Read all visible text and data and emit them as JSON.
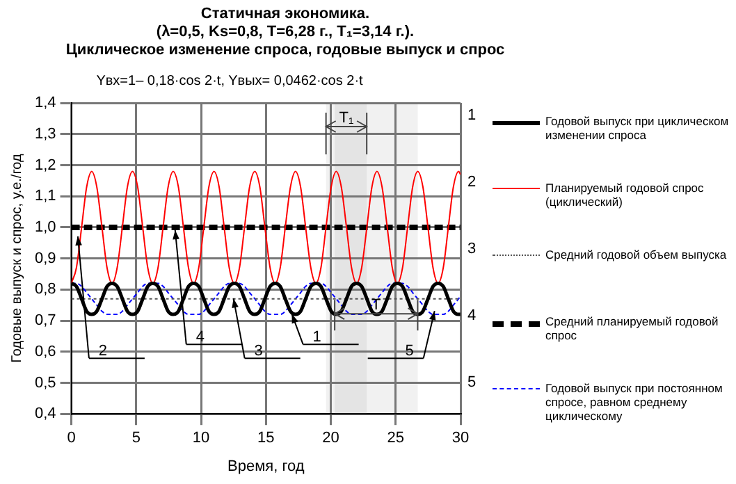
{
  "chart_data": {
    "type": "line",
    "title": "Статичная экономика.\n(λ=0,5,  Ks=0,8,  T=6,28 г., T₁=3,14 г.).\nЦиклическое изменение спроса, годовые выпуск и спрос",
    "subtitle": "Yвх=1– 0,18·cos 2·t,    Yвых= 0,0462·cos 2·t",
    "xlabel": "Время, год",
    "ylabel": "Годовые выпуск и спрос, у.е./год",
    "x": [
      0,
      0.39,
      0.79,
      1.18,
      1.57,
      1.96,
      2.36,
      2.75,
      3.14,
      3.53,
      3.93,
      4.32,
      4.71,
      5.11,
      5.5,
      5.89,
      6.28,
      6.68,
      7.07,
      7.46,
      7.85,
      8.25,
      8.64,
      9.03,
      9.42,
      9.82,
      10.21,
      10.6,
      11,
      11.39,
      11.78,
      12.17,
      12.57,
      12.96,
      13.35,
      13.74,
      14.14,
      14.53,
      14.92,
      15.32,
      15.71,
      16.1,
      16.49,
      16.89,
      17.28,
      17.67,
      18.06,
      18.46,
      18.85,
      19.24,
      19.63,
      20.03,
      20.42,
      20.81,
      21.21,
      21.6,
      21.99,
      22.38,
      22.78,
      23.17,
      23.56,
      23.95,
      24.35,
      24.74,
      25.13,
      25.53,
      25.92,
      26.31,
      26.7,
      27.1,
      27.49,
      27.88,
      28.27,
      28.67,
      29.06,
      29.45,
      29.85,
      30
    ],
    "series": [
      {
        "name": "Годовой выпуск при циклическом изменении спроса",
        "color": "#000000",
        "line_style": "solid",
        "values": [
          0.82,
          0.81,
          0.77,
          0.73,
          0.72,
          0.73,
          0.77,
          0.81,
          0.82,
          0.81,
          0.77,
          0.73,
          0.72,
          0.73,
          0.77,
          0.81,
          0.82,
          0.81,
          0.77,
          0.73,
          0.72,
          0.73,
          0.77,
          0.81,
          0.82,
          0.81,
          0.77,
          0.73,
          0.72,
          0.73,
          0.77,
          0.81,
          0.82,
          0.81,
          0.77,
          0.73,
          0.72,
          0.73,
          0.77,
          0.81,
          0.82,
          0.81,
          0.77,
          0.73,
          0.72,
          0.73,
          0.77,
          0.81,
          0.82,
          0.81,
          0.77,
          0.73,
          0.72,
          0.73,
          0.77,
          0.81,
          0.82,
          0.81,
          0.77,
          0.73,
          0.72,
          0.73,
          0.77,
          0.81,
          0.82,
          0.81,
          0.77,
          0.73,
          0.72,
          0.73,
          0.77,
          0.81,
          0.82,
          0.81,
          0.77,
          0.73,
          0.72,
          0.72
        ]
      },
      {
        "name": "Планируемый годовой спрос (циклический)",
        "color": "#ff0000",
        "line_style": "solid",
        "values": [
          0.82,
          0.87,
          1.0,
          1.13,
          1.18,
          1.13,
          1.0,
          0.87,
          0.82,
          0.87,
          1.0,
          1.13,
          1.18,
          1.13,
          1.0,
          0.87,
          0.82,
          0.87,
          1.0,
          1.13,
          1.18,
          1.13,
          1.0,
          0.87,
          0.82,
          0.87,
          1.0,
          1.13,
          1.18,
          1.13,
          1.0,
          0.87,
          0.82,
          0.87,
          1.0,
          1.13,
          1.18,
          1.13,
          1.0,
          0.87,
          0.82,
          0.87,
          1.0,
          1.13,
          1.18,
          1.13,
          1.0,
          0.87,
          0.82,
          0.87,
          1.0,
          1.13,
          1.18,
          1.13,
          1.0,
          0.87,
          0.82,
          0.87,
          1.0,
          1.13,
          1.18,
          1.13,
          1.0,
          0.87,
          0.82,
          0.87,
          1.0,
          1.13,
          1.18,
          1.13,
          1.0,
          0.87,
          0.82,
          0.87,
          1.0,
          1.13,
          1.18,
          1.17
        ]
      },
      {
        "name": "Средний годовой объем выпуска",
        "color": "#555555",
        "line_style": "dotted",
        "values": [
          0.77,
          0.77,
          0.77,
          0.77,
          0.77,
          0.77,
          0.77,
          0.77,
          0.77,
          0.77,
          0.77,
          0.77,
          0.77,
          0.77,
          0.77,
          0.77,
          0.77,
          0.77,
          0.77,
          0.77,
          0.77,
          0.77,
          0.77,
          0.77,
          0.77,
          0.77,
          0.77,
          0.77,
          0.77,
          0.77,
          0.77,
          0.77,
          0.77,
          0.77,
          0.77,
          0.77,
          0.77,
          0.77,
          0.77,
          0.77,
          0.77,
          0.77,
          0.77,
          0.77,
          0.77,
          0.77,
          0.77,
          0.77,
          0.77,
          0.77,
          0.77,
          0.77,
          0.77,
          0.77,
          0.77,
          0.77,
          0.77,
          0.77,
          0.77,
          0.77,
          0.77,
          0.77,
          0.77,
          0.77,
          0.77,
          0.77,
          0.77,
          0.77,
          0.77,
          0.77,
          0.77,
          0.77,
          0.77,
          0.77,
          0.77,
          0.77,
          0.77,
          0.77
        ]
      },
      {
        "name": "Средний планируемый годовой спрос",
        "color": "#000000",
        "line_style": "dashed",
        "values": [
          1.0,
          1.0,
          1.0,
          1.0,
          1.0,
          1.0,
          1.0,
          1.0,
          1.0,
          1.0,
          1.0,
          1.0,
          1.0,
          1.0,
          1.0,
          1.0,
          1.0,
          1.0,
          1.0,
          1.0,
          1.0,
          1.0,
          1.0,
          1.0,
          1.0,
          1.0,
          1.0,
          1.0,
          1.0,
          1.0,
          1.0,
          1.0,
          1.0,
          1.0,
          1.0,
          1.0,
          1.0,
          1.0,
          1.0,
          1.0,
          1.0,
          1.0,
          1.0,
          1.0,
          1.0,
          1.0,
          1.0,
          1.0,
          1.0,
          1.0,
          1.0,
          1.0,
          1.0,
          1.0,
          1.0,
          1.0,
          1.0,
          1.0,
          1.0,
          1.0,
          1.0,
          1.0,
          1.0,
          1.0,
          1.0,
          1.0,
          1.0,
          1.0,
          1.0,
          1.0,
          1.0,
          1.0,
          1.0,
          1.0,
          1.0,
          1.0,
          1.0,
          1.0
        ]
      },
      {
        "name": "Годовой выпуск при постоянном спросе, равном среднему циклическому",
        "color": "#0000ff",
        "line_style": "dashed",
        "values": [
          0.82,
          0.82,
          0.81,
          0.79,
          0.77,
          0.75,
          0.73,
          0.72,
          0.72,
          0.72,
          0.73,
          0.75,
          0.77,
          0.79,
          0.81,
          0.82,
          0.82,
          0.82,
          0.81,
          0.79,
          0.77,
          0.75,
          0.73,
          0.72,
          0.72,
          0.72,
          0.73,
          0.75,
          0.77,
          0.79,
          0.81,
          0.82,
          0.82,
          0.82,
          0.81,
          0.79,
          0.77,
          0.75,
          0.73,
          0.72,
          0.72,
          0.72,
          0.73,
          0.75,
          0.77,
          0.79,
          0.81,
          0.82,
          0.82,
          0.82,
          0.81,
          0.79,
          0.77,
          0.75,
          0.73,
          0.72,
          0.72,
          0.72,
          0.73,
          0.75,
          0.77,
          0.79,
          0.81,
          0.82,
          0.82,
          0.82,
          0.81,
          0.79,
          0.77,
          0.75,
          0.73,
          0.72,
          0.72,
          0.72,
          0.73,
          0.75,
          0.77,
          0.78
        ]
      }
    ],
    "bands": [
      {
        "axis": "x",
        "from": 19.63,
        "to": 22.77,
        "label": "T₁"
      },
      {
        "axis": "x",
        "from": 20.3,
        "to": 26.7,
        "label": "T"
      }
    ],
    "annotations": [
      {
        "text": "2",
        "x": 0.5,
        "y": 0.98
      },
      {
        "text": "4",
        "x": 8,
        "y": 1.0
      },
      {
        "text": "3",
        "x": 12.5,
        "y": 0.78
      },
      {
        "text": "1",
        "x": 17,
        "y": 0.73
      },
      {
        "text": "5",
        "x": 28,
        "y": 0.74
      }
    ],
    "xlim": [
      0,
      30
    ],
    "xticks": [
      0,
      5,
      10,
      15,
      20,
      25,
      30
    ],
    "ylim": [
      0.4,
      1.4
    ],
    "yticks": [
      {
        "value": 0.4,
        "label": "0,4"
      },
      {
        "value": 0.5,
        "label": "0,5"
      },
      {
        "value": 0.6,
        "label": "0,6"
      },
      {
        "value": 0.7,
        "label": "0,7"
      },
      {
        "value": 0.8,
        "label": "0,8"
      },
      {
        "value": 0.9,
        "label": "0,9"
      },
      {
        "value": 1.0,
        "label": "1,0"
      },
      {
        "value": 1.1,
        "label": "1,1"
      },
      {
        "value": 1.2,
        "label": "1,2"
      },
      {
        "value": 1.3,
        "label": "1,3"
      },
      {
        "value": 1.4,
        "label": "1,4"
      }
    ],
    "grid": true,
    "legend": "right",
    "marker": "none"
  }
}
